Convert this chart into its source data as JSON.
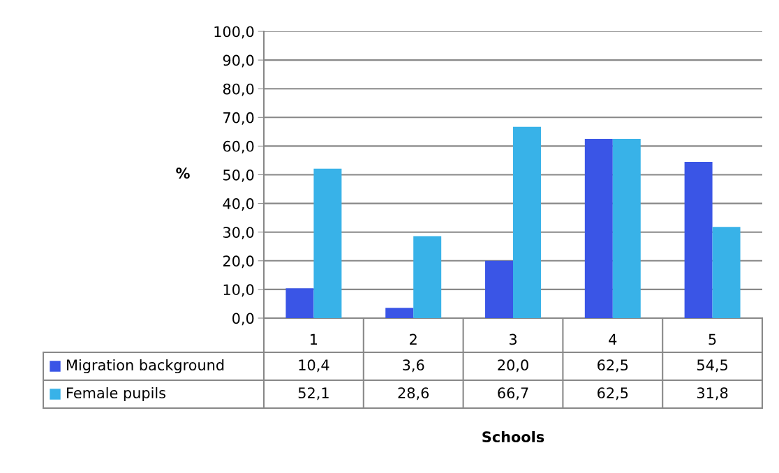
{
  "chart_data": {
    "type": "bar",
    "annotations": [
      "Schools"
    ],
    "ylabel": "%",
    "categories": [
      "1",
      "2",
      "3",
      "4",
      "5"
    ],
    "series": [
      {
        "name": "Migration background",
        "color": "#3a55e6",
        "values": [
          10.4,
          3.6,
          20.0,
          62.5,
          54.5
        ],
        "value_labels": [
          "10,4",
          "3,6",
          "20,0",
          "62,5",
          "54,5"
        ]
      },
      {
        "name": "Female pupils",
        "color": "#38b2e8",
        "values": [
          52.1,
          28.6,
          66.7,
          62.5,
          31.8
        ],
        "value_labels": [
          "52,1",
          "28,6",
          "66,7",
          "62,5",
          "31,8"
        ]
      }
    ],
    "ylim": [
      0,
      100
    ],
    "yticks": [
      {
        "value": 0,
        "label": "0,0"
      },
      {
        "value": 10,
        "label": "10,0"
      },
      {
        "value": 20,
        "label": "20,0"
      },
      {
        "value": 30,
        "label": "30,0"
      },
      {
        "value": 40,
        "label": "40,0"
      },
      {
        "value": 50,
        "label": "50,0"
      },
      {
        "value": 60,
        "label": "60,0"
      },
      {
        "value": 70,
        "label": "70,0"
      },
      {
        "value": 80,
        "label": "80,0"
      },
      {
        "value": 90,
        "label": "90,0"
      },
      {
        "value": 100,
        "label": "100,0"
      }
    ],
    "grid": "y",
    "legend": "bottom"
  }
}
